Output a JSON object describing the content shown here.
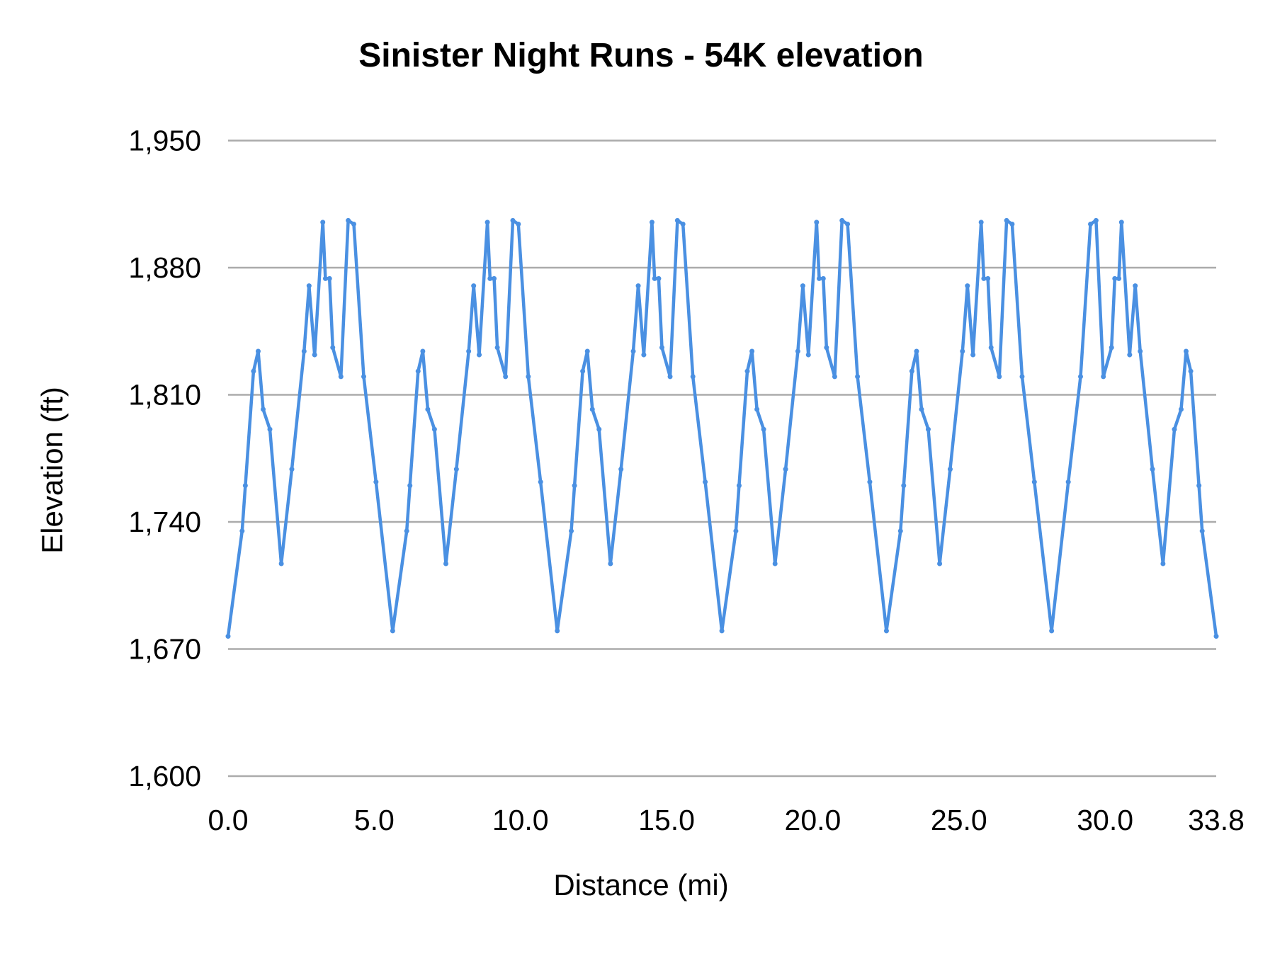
{
  "chart_data": {
    "type": "line",
    "title": "Sinister Night Runs - 54K elevation",
    "xlabel": "Distance (mi)",
    "ylabel": "Elevation (ft)",
    "xlim": [
      0,
      33.8
    ],
    "ylim": [
      1600,
      1950
    ],
    "x_ticks": [
      "0.0",
      "5.0",
      "10.0",
      "15.0",
      "20.0",
      "25.0",
      "30.0",
      "33.8"
    ],
    "x_tick_values": [
      0,
      5,
      10,
      15,
      20,
      25,
      30,
      33.8
    ],
    "y_ticks": [
      "1,600",
      "1,670",
      "1,740",
      "1,810",
      "1,880",
      "1,950"
    ],
    "y_tick_values": [
      1600,
      1670,
      1740,
      1810,
      1880,
      1950
    ],
    "grid": "horizontal",
    "legend": "none",
    "series_color": "#4a90e2",
    "markers": true,
    "series": [
      {
        "x": [
          0,
          0.48,
          0.59,
          0.87,
          1.03,
          1.2,
          1.43,
          1.82,
          2.18,
          2.6,
          2.77,
          2.96,
          3.24,
          3.33,
          3.47,
          3.58,
          3.86,
          4.11,
          4.3,
          4.64,
          5.06,
          5.63,
          6.11,
          6.22,
          6.5,
          6.66,
          6.83,
          7.06,
          7.45,
          7.81,
          8.23,
          8.4,
          8.59,
          8.87,
          8.96,
          9.1,
          9.21,
          9.49,
          9.74,
          9.93,
          10.27,
          10.69,
          11.26,
          11.74,
          11.85,
          12.13,
          12.29,
          12.46,
          12.69,
          13.08,
          13.44,
          13.86,
          14.03,
          14.22,
          14.5,
          14.59,
          14.73,
          14.84,
          15.12,
          15.37,
          15.56,
          15.9,
          16.32,
          16.89,
          17.37,
          17.48,
          17.76,
          17.92,
          18.09,
          18.32,
          18.71,
          19.07,
          19.49,
          19.66,
          19.85,
          20.13,
          20.22,
          20.36,
          20.47,
          20.75,
          21.0,
          21.19,
          21.53,
          21.95,
          22.52,
          23.0,
          23.11,
          23.39,
          23.55,
          23.72,
          23.95,
          24.34,
          24.7,
          25.12,
          25.29,
          25.48,
          25.76,
          25.85,
          25.99,
          26.1,
          26.38,
          26.63,
          26.82,
          27.16,
          27.58,
          28.17,
          28.74,
          29.16,
          29.5,
          29.69,
          29.94,
          30.22,
          30.33,
          30.47,
          30.56,
          30.84,
          31.03,
          31.2,
          31.62,
          31.98,
          32.37,
          32.6,
          32.77,
          32.93,
          33.21,
          33.32,
          33.8
        ],
        "y": [
          1677,
          1735,
          1760,
          1823,
          1834,
          1802,
          1791,
          1717,
          1769,
          1834,
          1870,
          1832,
          1905,
          1874,
          1874,
          1836,
          1820,
          1906,
          1904,
          1820,
          1762,
          1680,
          1735,
          1760,
          1823,
          1834,
          1802,
          1791,
          1717,
          1769,
          1834,
          1870,
          1832,
          1905,
          1874,
          1874,
          1836,
          1820,
          1906,
          1904,
          1820,
          1762,
          1680,
          1735,
          1760,
          1823,
          1834,
          1802,
          1791,
          1717,
          1769,
          1834,
          1870,
          1832,
          1905,
          1874,
          1874,
          1836,
          1820,
          1906,
          1904,
          1820,
          1762,
          1680,
          1735,
          1760,
          1823,
          1834,
          1802,
          1791,
          1717,
          1769,
          1834,
          1870,
          1832,
          1905,
          1874,
          1874,
          1836,
          1820,
          1906,
          1904,
          1820,
          1762,
          1680,
          1735,
          1760,
          1823,
          1834,
          1802,
          1791,
          1717,
          1769,
          1834,
          1870,
          1832,
          1905,
          1874,
          1874,
          1836,
          1820,
          1906,
          1904,
          1820,
          1762,
          1680,
          1762,
          1820,
          1904,
          1906,
          1820,
          1836,
          1874,
          1874,
          1905,
          1832,
          1870,
          1834,
          1769,
          1717,
          1791,
          1802,
          1834,
          1823,
          1760,
          1735,
          1677
        ]
      }
    ]
  }
}
